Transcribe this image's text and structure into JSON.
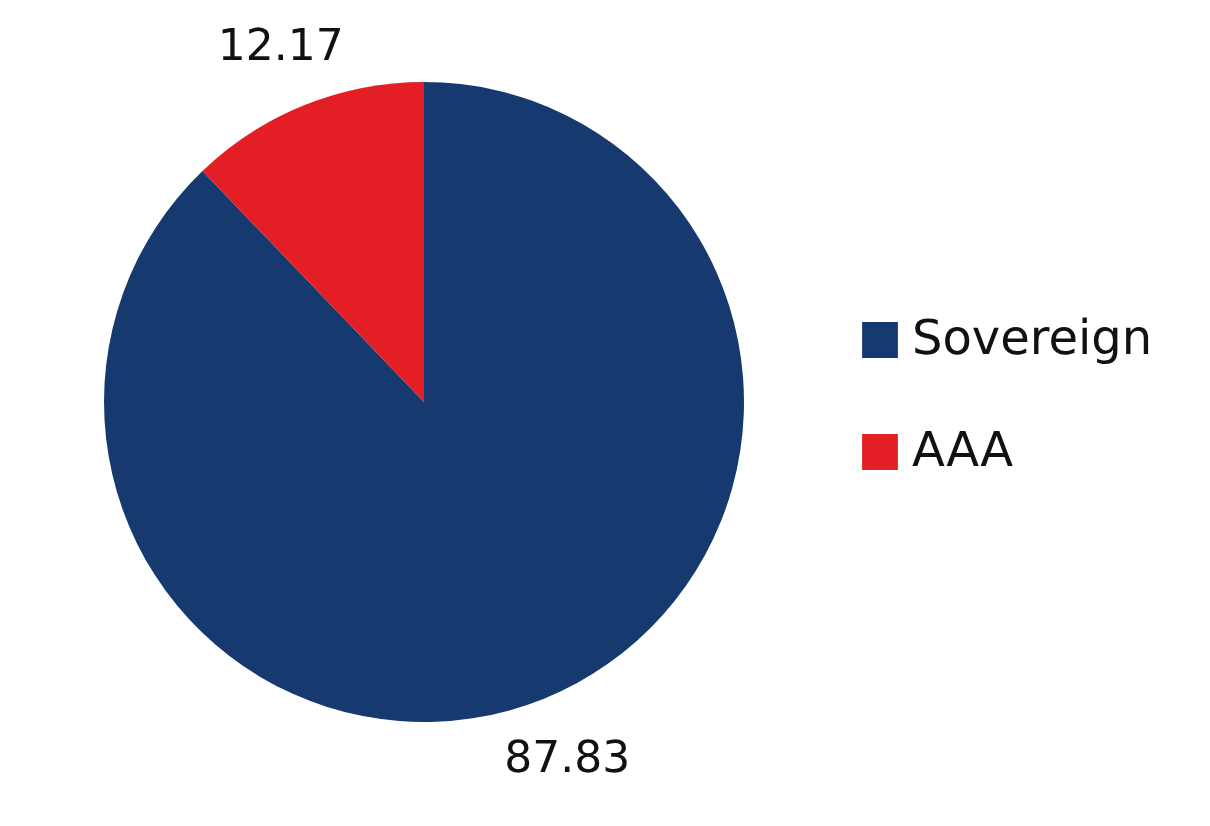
{
  "chart_data": {
    "type": "pie",
    "categories": [
      "Sovereign",
      "AAA"
    ],
    "values": [
      87.83,
      12.17
    ],
    "colors": [
      "#163a70",
      "#e31e24"
    ],
    "data_labels": true,
    "legend": "right"
  }
}
